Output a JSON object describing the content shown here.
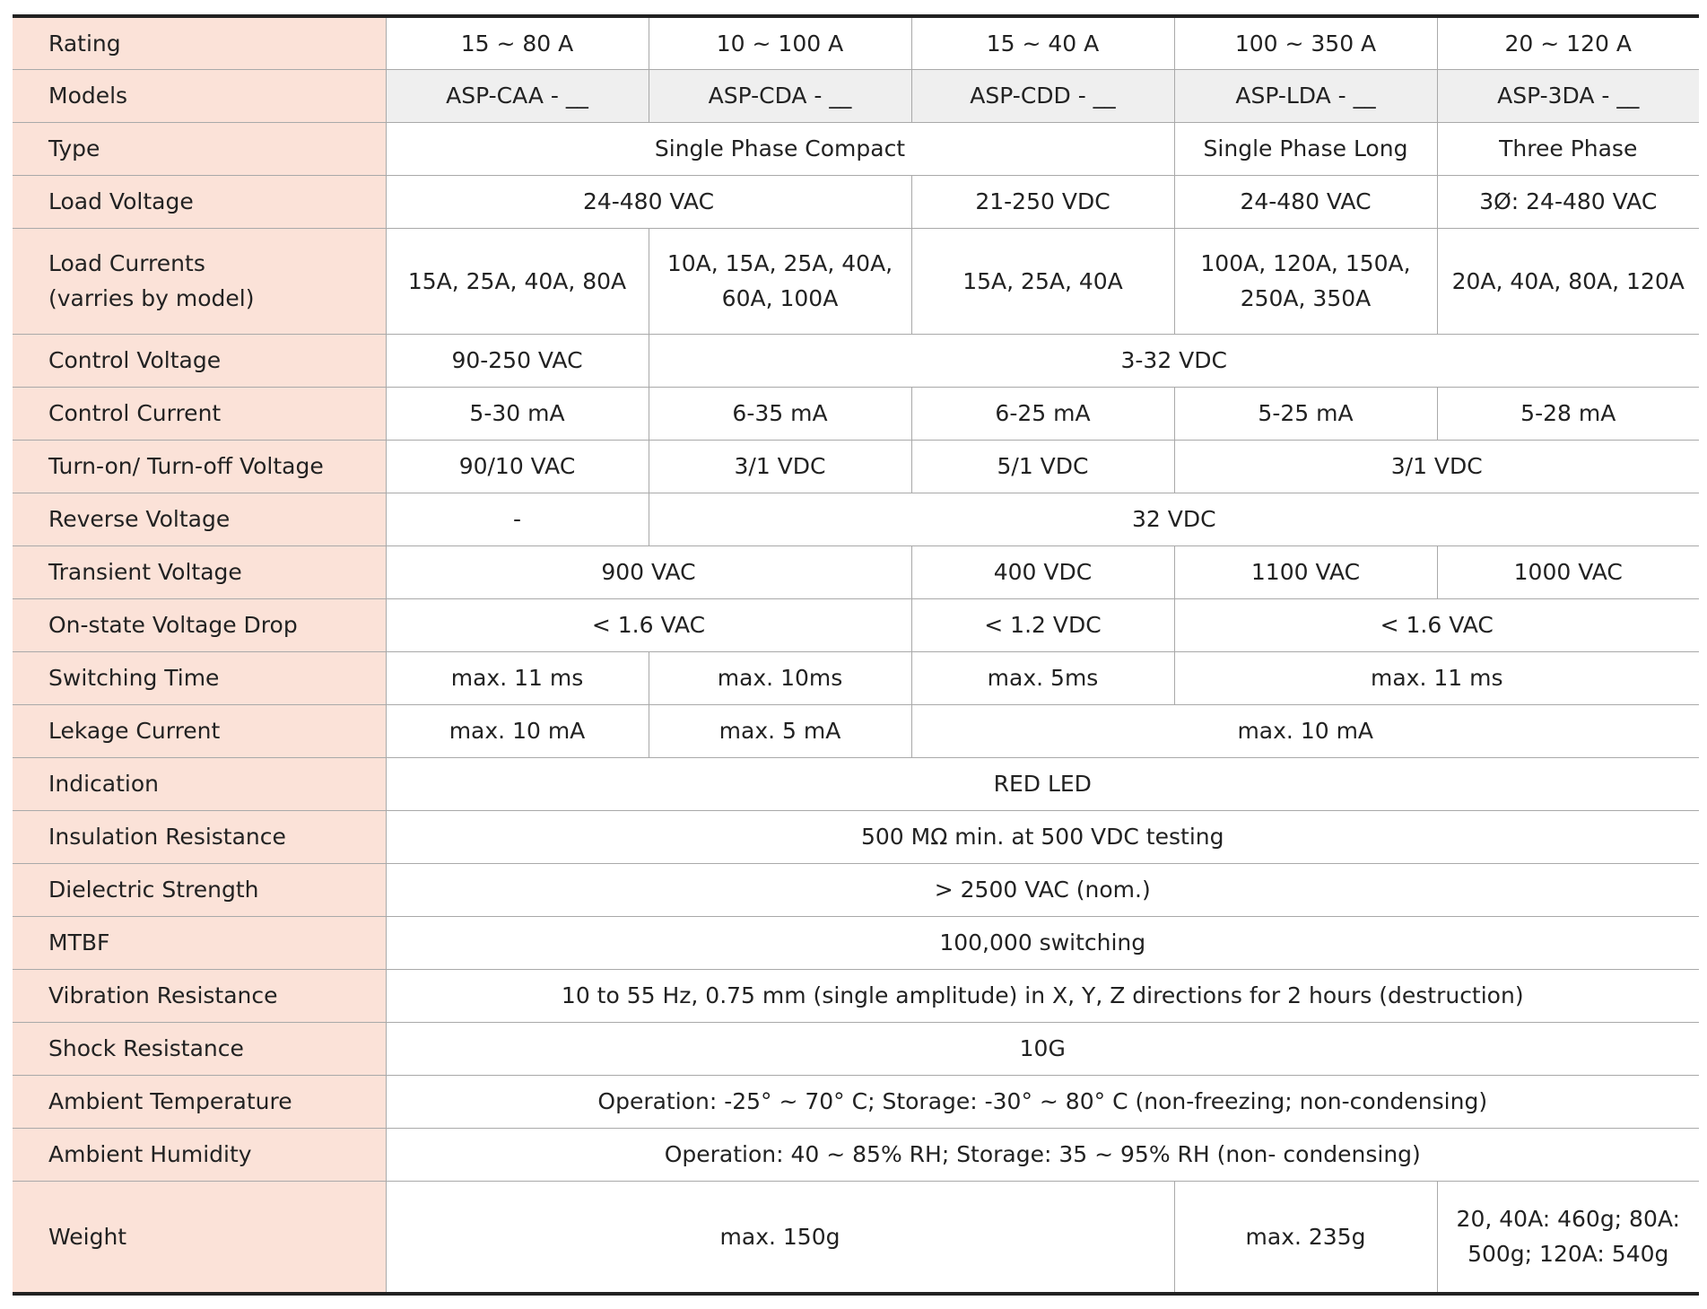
{
  "rows": [
    {
      "label": "Rating",
      "cells": [
        {
          "text": "15 ~ 80 A",
          "span": 1
        },
        {
          "text": "10 ~ 100 A",
          "span": 1
        },
        {
          "text": "15 ~ 40 A",
          "span": 1
        },
        {
          "text": "100 ~ 350 A",
          "span": 1
        },
        {
          "text": "20 ~ 120 A",
          "span": 1
        }
      ]
    },
    {
      "label": "Models",
      "cells": [
        {
          "text": "ASP-CAA - __",
          "span": 1
        },
        {
          "text": "ASP-CDA - __",
          "span": 1
        },
        {
          "text": "ASP-CDD - __",
          "span": 1
        },
        {
          "text": "ASP-LDA - __",
          "span": 1
        },
        {
          "text": "ASP-3DA - __",
          "span": 1
        }
      ]
    },
    {
      "label": "Type",
      "cells": [
        {
          "text": "Single Phase Compact",
          "span": 3
        },
        {
          "text": "Single Phase Long",
          "span": 1
        },
        {
          "text": "Three Phase",
          "span": 1
        }
      ]
    },
    {
      "label": "Load Voltage",
      "cells": [
        {
          "text": "24-480 VAC",
          "span": 2
        },
        {
          "text": "21-250 VDC",
          "span": 1
        },
        {
          "text": "24-480 VAC",
          "span": 1
        },
        {
          "text": "3Ø: 24-480 VAC",
          "span": 1
        }
      ]
    },
    {
      "label": "Load Currents\n(varries by model)",
      "cells": [
        {
          "text": "15A, 25A, 40A, 80A",
          "span": 1
        },
        {
          "text": "10A, 15A, 25A, 40A,\n60A, 100A",
          "span": 1
        },
        {
          "text": "15A, 25A, 40A",
          "span": 1
        },
        {
          "text": "100A, 120A, 150A,\n250A, 350A",
          "span": 1
        },
        {
          "text": "20A, 40A, 80A, 120A",
          "span": 1
        }
      ]
    },
    {
      "label": "Control Voltage",
      "cells": [
        {
          "text": "90-250 VAC",
          "span": 1
        },
        {
          "text": "3-32 VDC",
          "span": 4
        }
      ]
    },
    {
      "label": "Control Current",
      "cells": [
        {
          "text": "5-30 mA",
          "span": 1
        },
        {
          "text": "6-35 mA",
          "span": 1
        },
        {
          "text": "6-25 mA",
          "span": 1
        },
        {
          "text": "5-25 mA",
          "span": 1
        },
        {
          "text": "5-28 mA",
          "span": 1
        }
      ]
    },
    {
      "label": "Turn-on/ Turn-off Voltage",
      "cells": [
        {
          "text": "90/10 VAC",
          "span": 1
        },
        {
          "text": "3/1 VDC",
          "span": 1
        },
        {
          "text": "5/1 VDC",
          "span": 1
        },
        {
          "text": "3/1 VDC",
          "span": 2
        }
      ]
    },
    {
      "label": "Reverse Voltage",
      "cells": [
        {
          "text": "-",
          "span": 1
        },
        {
          "text": "32 VDC",
          "span": 4
        }
      ]
    },
    {
      "label": "Transient Voltage",
      "cells": [
        {
          "text": "900 VAC",
          "span": 2
        },
        {
          "text": "400 VDC",
          "span": 1
        },
        {
          "text": "1100 VAC",
          "span": 1
        },
        {
          "text": "1000 VAC",
          "span": 1
        }
      ]
    },
    {
      "label": "On-state Voltage Drop",
      "cells": [
        {
          "text": "< 1.6 VAC",
          "span": 2
        },
        {
          "text": "< 1.2 VDC",
          "span": 1
        },
        {
          "text": "< 1.6 VAC",
          "span": 2
        }
      ]
    },
    {
      "label": "Switching Time",
      "cells": [
        {
          "text": "max. 11 ms",
          "span": 1
        },
        {
          "text": "max. 10ms",
          "span": 1
        },
        {
          "text": "max. 5ms",
          "span": 1
        },
        {
          "text": "max. 11 ms",
          "span": 2
        }
      ]
    },
    {
      "label": "Lekage Current",
      "cells": [
        {
          "text": "max. 10 mA",
          "span": 1
        },
        {
          "text": "max. 5 mA",
          "span": 1
        },
        {
          "text": "max. 10 mA",
          "span": 3
        }
      ]
    },
    {
      "label": "Indication",
      "cells": [
        {
          "text": "RED LED",
          "span": 5
        }
      ]
    },
    {
      "label": "Insulation Resistance",
      "cells": [
        {
          "text": "500 MΩ min. at 500 VDC testing",
          "span": 5
        }
      ]
    },
    {
      "label": "Dielectric Strength",
      "cells": [
        {
          "text": "> 2500 VAC (nom.)",
          "span": 5
        }
      ]
    },
    {
      "label": "MTBF",
      "cells": [
        {
          "text": "100,000 switching",
          "span": 5
        }
      ]
    },
    {
      "label": "Vibration Resistance",
      "cells": [
        {
          "text": "10 to 55 Hz, 0.75 mm (single amplitude) in X, Y, Z directions for 2 hours (destruction)",
          "span": 5
        }
      ]
    },
    {
      "label": "Shock Resistance",
      "cells": [
        {
          "text": "10G",
          "span": 5
        }
      ]
    },
    {
      "label": "Ambient Temperature",
      "cells": [
        {
          "text": "Operation: -25° ~ 70° C; Storage: -30° ~ 80° C (non-freezing; non-condensing)",
          "span": 5
        }
      ]
    },
    {
      "label": "Ambient Humidity",
      "cells": [
        {
          "text": "Operation: 40 ~ 85% RH; Storage: 35 ~ 95% RH (non- condensing)",
          "span": 5
        }
      ]
    },
    {
      "label": "Weight",
      "cells": [
        {
          "text": "max. 150g",
          "span": 3
        },
        {
          "text": "max. 235g",
          "span": 1
        },
        {
          "text": "20, 40A: 460g; 80A:\n500g; 120A: 540g",
          "span": 1
        }
      ]
    }
  ]
}
